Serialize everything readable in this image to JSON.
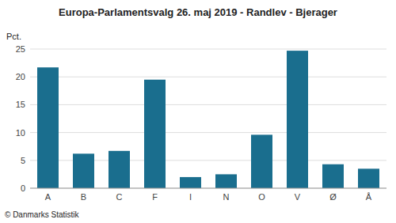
{
  "chart_data": {
    "type": "bar",
    "title": "Europa-Parlamentsvalg 26. maj 2019 - Randlev - Bjerager",
    "ylabel": "Pct.",
    "footer": "© Danmarks Statistik",
    "categories": [
      "A",
      "B",
      "C",
      "F",
      "I",
      "N",
      "O",
      "V",
      "Ø",
      "Å"
    ],
    "values": [
      21.7,
      6.2,
      6.7,
      19.5,
      2.0,
      2.5,
      9.6,
      24.7,
      4.3,
      3.5
    ],
    "color": "#1a6e8e",
    "ylim": [
      0,
      25
    ],
    "yticks": [
      0,
      5,
      10,
      15,
      20,
      25
    ],
    "grid": true
  }
}
